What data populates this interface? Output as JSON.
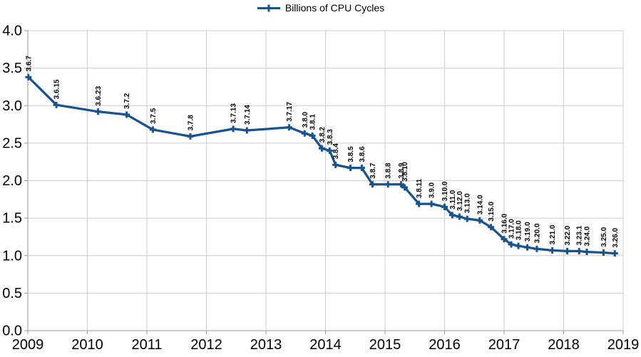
{
  "legend": {
    "label": "Billions of CPU Cycles"
  },
  "colors": {
    "series": "#18538E",
    "grid": "#CCCCCC",
    "axis": "#999999",
    "text": "#000000"
  },
  "chart_data": {
    "type": "line",
    "title": "",
    "legend_position": "top-center",
    "grid": true,
    "xlim": [
      2009,
      2019
    ],
    "ylim": [
      0.0,
      4.0
    ],
    "x_ticks": [
      {
        "value": 2009,
        "label": "2009"
      },
      {
        "value": 2010,
        "label": "2010"
      },
      {
        "value": 2011,
        "label": "2011"
      },
      {
        "value": 2012,
        "label": "2012"
      },
      {
        "value": 2013,
        "label": "2013"
      },
      {
        "value": 2014,
        "label": "2014"
      },
      {
        "value": 2015,
        "label": "2015"
      },
      {
        "value": 2016,
        "label": "2016"
      },
      {
        "value": 2017,
        "label": "2017"
      },
      {
        "value": 2018,
        "label": "2018"
      },
      {
        "value": 2019,
        "label": "2019"
      }
    ],
    "y_ticks": [
      {
        "value": 0.0,
        "label": "0.0"
      },
      {
        "value": 0.5,
        "label": "0.5"
      },
      {
        "value": 1.0,
        "label": "1.0"
      },
      {
        "value": 1.5,
        "label": "1.5"
      },
      {
        "value": 2.0,
        "label": "2.0"
      },
      {
        "value": 2.5,
        "label": "2.5"
      },
      {
        "value": 3.0,
        "label": "3.0"
      },
      {
        "value": 3.5,
        "label": "3.5"
      },
      {
        "value": 4.0,
        "label": "4.0"
      }
    ],
    "series": [
      {
        "name": "Billions of CPU Cycles",
        "marker": "plus",
        "color": "#18538E",
        "label_rotation_deg": 90,
        "points": [
          {
            "version": "3.6.7",
            "year": 2009.01,
            "value": 3.38
          },
          {
            "version": "3.6.15",
            "year": 2009.48,
            "value": 3.01
          },
          {
            "version": "3.6.23",
            "year": 2010.18,
            "value": 2.92
          },
          {
            "version": "3.7.2",
            "year": 2010.66,
            "value": 2.88
          },
          {
            "version": "3.7.5",
            "year": 2011.1,
            "value": 2.68
          },
          {
            "version": "3.7.8",
            "year": 2011.73,
            "value": 2.59
          },
          {
            "version": "3.7.13",
            "year": 2012.45,
            "value": 2.69
          },
          {
            "version": "3.7.14",
            "year": 2012.68,
            "value": 2.67
          },
          {
            "version": "3.7.17",
            "year": 2013.39,
            "value": 2.71
          },
          {
            "version": "3.8.0",
            "year": 2013.65,
            "value": 2.63
          },
          {
            "version": "3.8.1",
            "year": 2013.78,
            "value": 2.6
          },
          {
            "version": "3.8.2",
            "year": 2013.94,
            "value": 2.43
          },
          {
            "version": "3.8.3",
            "year": 2014.07,
            "value": 2.4
          },
          {
            "version": "3.8.4",
            "year": 2014.17,
            "value": 2.21
          },
          {
            "version": "3.8.5",
            "year": 2014.42,
            "value": 2.17
          },
          {
            "version": "3.8.6",
            "year": 2014.61,
            "value": 2.17
          },
          {
            "version": "3.8.7",
            "year": 2014.79,
            "value": 1.95
          },
          {
            "version": "3.8.8",
            "year": 2015.05,
            "value": 1.95
          },
          {
            "version": "3.8.9",
            "year": 2015.27,
            "value": 1.95
          },
          {
            "version": "3.8.10",
            "year": 2015.33,
            "value": 1.91
          },
          {
            "version": "3.8.11",
            "year": 2015.57,
            "value": 1.69
          },
          {
            "version": "3.9.0",
            "year": 2015.78,
            "value": 1.69
          },
          {
            "version": "3.10.0",
            "year": 2016.0,
            "value": 1.65
          },
          {
            "version": "3.11.0",
            "year": 2016.13,
            "value": 1.54
          },
          {
            "version": "3.12.0",
            "year": 2016.25,
            "value": 1.52
          },
          {
            "version": "3.13.0",
            "year": 2016.38,
            "value": 1.49
          },
          {
            "version": "3.14.0",
            "year": 2016.59,
            "value": 1.47
          },
          {
            "version": "3.15.0",
            "year": 2016.78,
            "value": 1.38
          },
          {
            "version": "3.16.0",
            "year": 2017.0,
            "value": 1.22
          },
          {
            "version": "3.17.0",
            "year": 2017.12,
            "value": 1.15
          },
          {
            "version": "3.18.0",
            "year": 2017.24,
            "value": 1.13
          },
          {
            "version": "3.19.0",
            "year": 2017.39,
            "value": 1.11
          },
          {
            "version": "3.20.0",
            "year": 2017.55,
            "value": 1.09
          },
          {
            "version": "3.21.0",
            "year": 2017.81,
            "value": 1.07
          },
          {
            "version": "3.22.0",
            "year": 2018.06,
            "value": 1.06
          },
          {
            "version": "3.23.1",
            "year": 2018.26,
            "value": 1.06
          },
          {
            "version": "3.24.0",
            "year": 2018.39,
            "value": 1.05
          },
          {
            "version": "3.25.0",
            "year": 2018.67,
            "value": 1.04
          },
          {
            "version": "3.26.0",
            "year": 2018.86,
            "value": 1.03
          }
        ]
      }
    ]
  }
}
